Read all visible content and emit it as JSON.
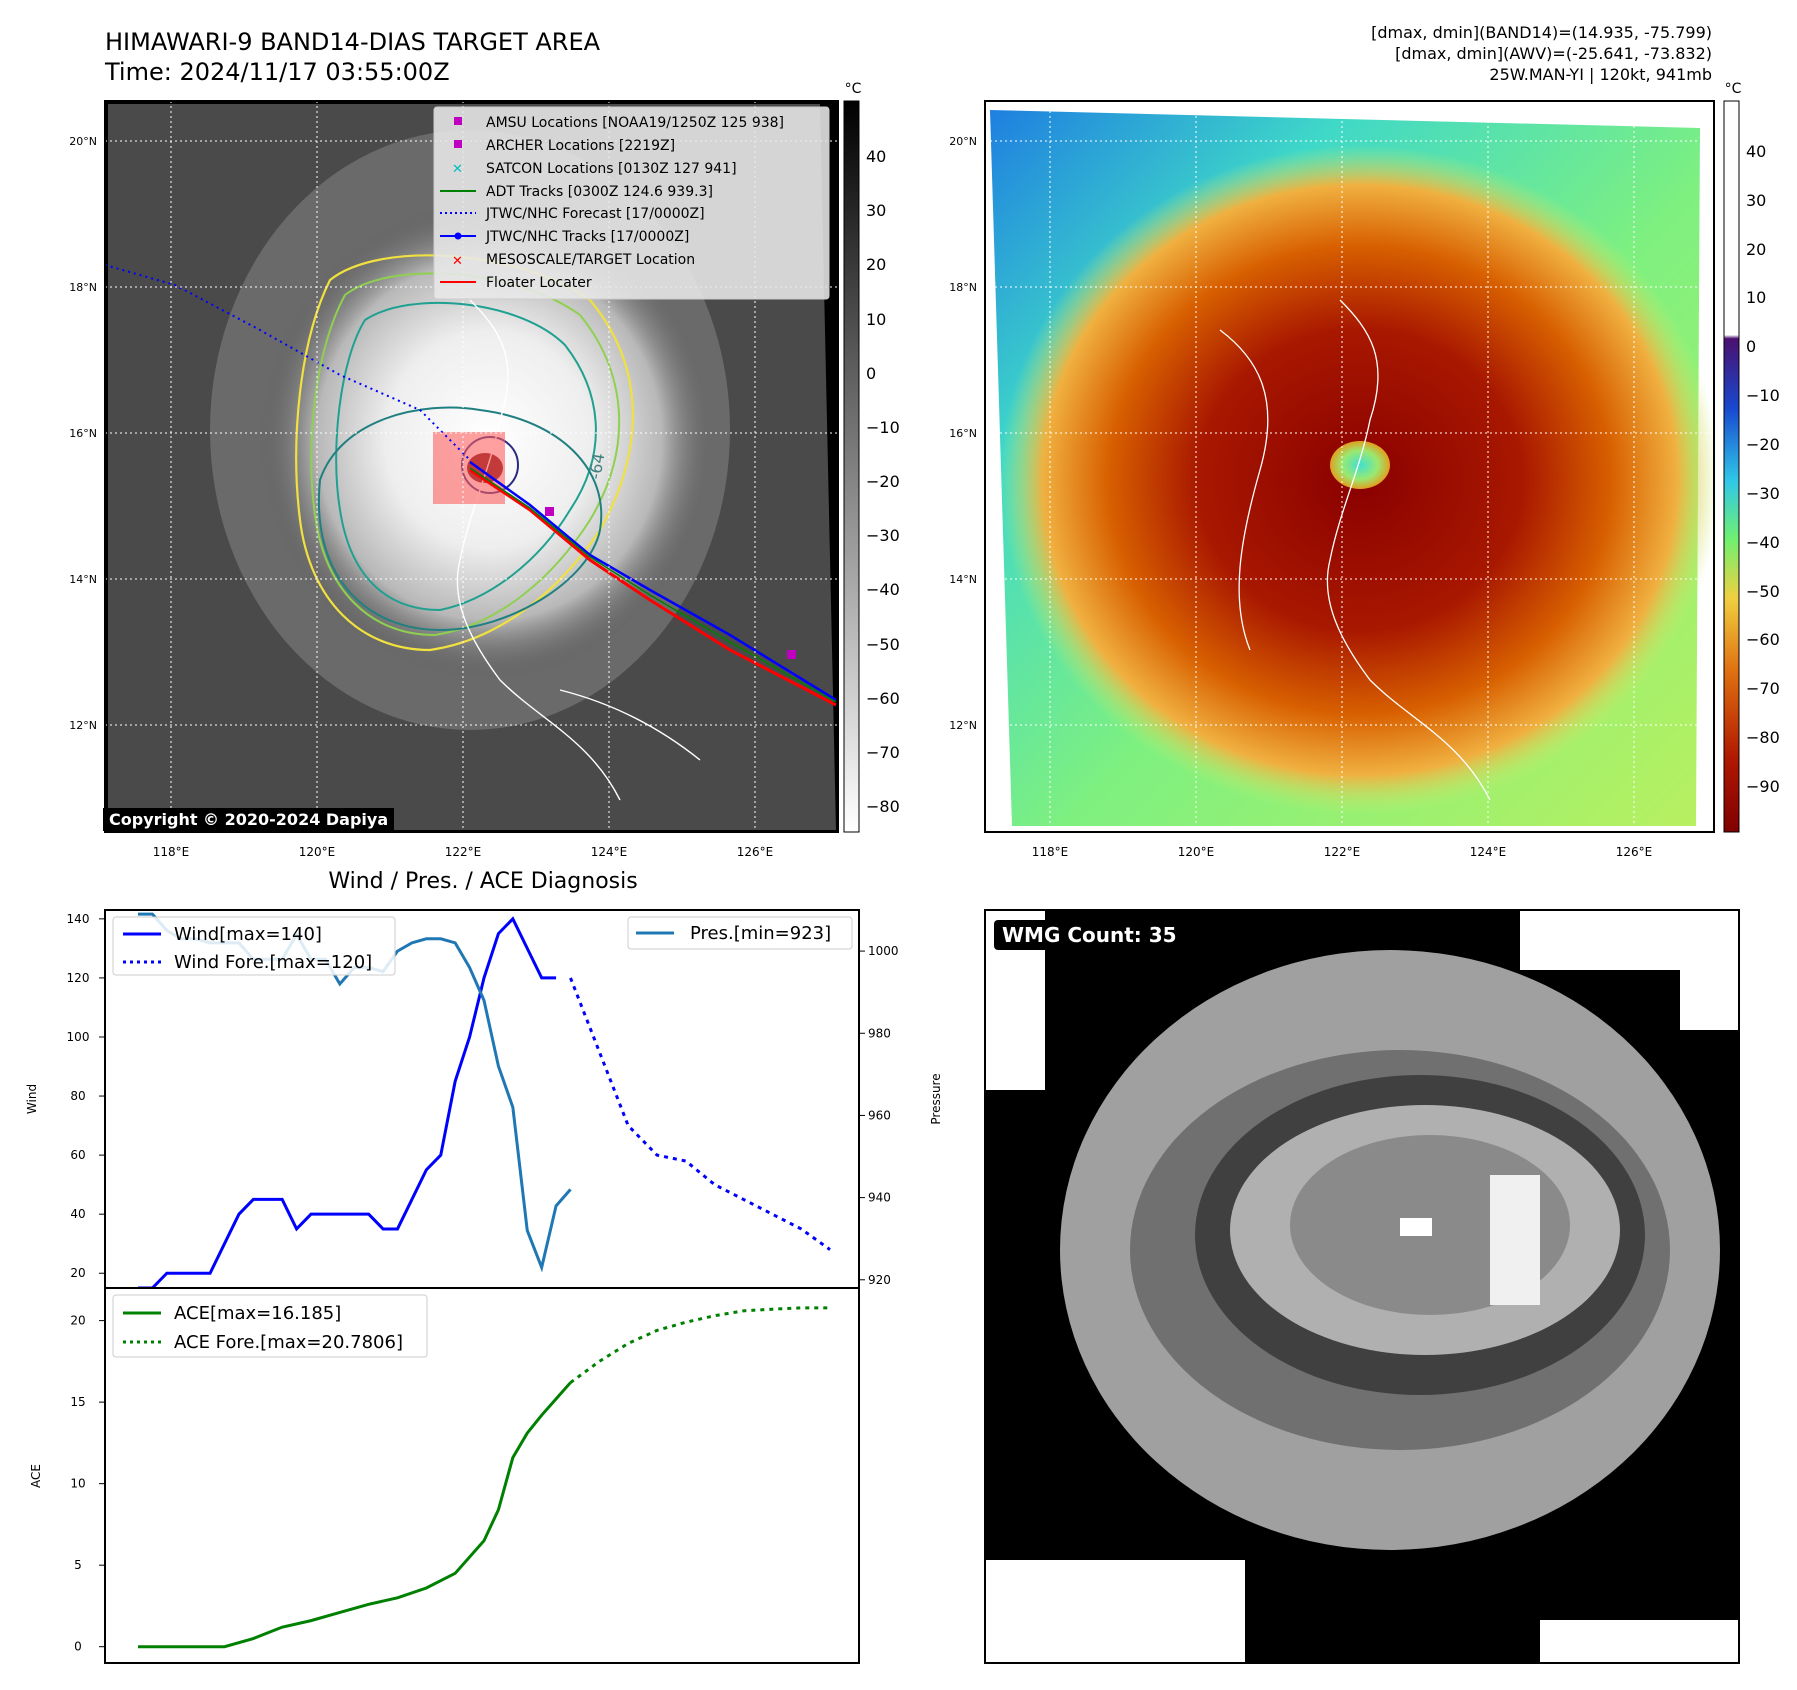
{
  "header": {
    "title_line1": "HIMAWARI-9 BAND14-DIAS TARGET AREA",
    "title_line2": "Time: 2024/11/17 03:55:00Z",
    "info_line1": "[dmax, dmin](BAND14)=(14.935, -75.799)",
    "info_line2": "[dmax, dmin](AWV)=(-25.641, -73.832)",
    "info_line3": "25W.MAN-YI | 120kt, 941mb"
  },
  "ir_panel": {
    "copyright": "Copyright © 2020-2024 Dapiya",
    "lat_labels": [
      "20°N",
      "18°N",
      "16°N",
      "14°N",
      "12°N"
    ],
    "lon_labels": [
      "118°E",
      "120°E",
      "122°E",
      "124°E",
      "126°E"
    ],
    "colorbar_unit": "°C",
    "colorbar_ticks": [
      "40",
      "30",
      "20",
      "10",
      "0",
      "−10",
      "−20",
      "−30",
      "−40",
      "−50",
      "−60",
      "−70",
      "−80"
    ],
    "contour_label": "-64",
    "legend": [
      {
        "label": "AMSU Locations [NOAA19/1250Z 125 938]",
        "color": "#c000c0",
        "marker": "square"
      },
      {
        "label": "ARCHER Locations [2219Z]",
        "color": "#c000c0",
        "marker": "square"
      },
      {
        "label": "SATCON Locations [0130Z 127 941]",
        "color": "#00c0c0",
        "marker": "x"
      },
      {
        "label": "ADT Tracks [0300Z 124.6 939.3]",
        "color": "#008000",
        "marker": "line"
      },
      {
        "label": "JTWC/NHC Forecast [17/0000Z]",
        "color": "#0000ff",
        "marker": "dotted"
      },
      {
        "label": "JTWC/NHC Tracks [17/0000Z]",
        "color": "#0000ff",
        "marker": "line-dot"
      },
      {
        "label": "MESOSCALE/TARGET Location",
        "color": "#ff0000",
        "marker": "x"
      },
      {
        "label": "Floater Locater",
        "color": "#ff0000",
        "marker": "line"
      }
    ]
  },
  "awv_panel": {
    "lat_labels": [
      "20°N",
      "18°N",
      "16°N",
      "14°N",
      "12°N"
    ],
    "lon_labels": [
      "118°E",
      "120°E",
      "122°E",
      "124°E",
      "126°E"
    ],
    "colorbar_unit": "°C",
    "colorbar_ticks": [
      "40",
      "30",
      "20",
      "10",
      "0",
      "−10",
      "−20",
      "−30",
      "−40",
      "−50",
      "−60",
      "−70",
      "−80",
      "−90"
    ]
  },
  "wmg_panel": {
    "count_label": "WMG Count: 35"
  },
  "colors": {
    "wind": "#0000ff",
    "pressure": "#1f77b4",
    "ace": "#008000"
  },
  "chart_data": [
    {
      "type": "line",
      "title": "Wind / Pres. / ACE Diagnosis",
      "ylabel": "Wind",
      "y2label": "Pressure",
      "ylim": [
        15,
        143
      ],
      "y2lim": [
        918,
        1010
      ],
      "yticks": [
        "20",
        "40",
        "60",
        "80",
        "100",
        "120",
        "140"
      ],
      "y2ticks": [
        "920",
        "940",
        "960",
        "980",
        "1000"
      ],
      "legend_left": [
        "Wind[max=140]",
        "Wind Fore.[max=120]"
      ],
      "legend_right": [
        "Pres.[min=923]"
      ],
      "series": [
        {
          "name": "Wind[max=140]",
          "axis": "left",
          "style": "solid",
          "x": [
            0,
            1,
            2,
            3,
            4,
            5,
            6,
            7,
            8,
            9,
            10,
            11,
            12,
            13,
            14,
            15,
            16,
            17,
            18,
            19,
            20,
            21,
            22,
            23,
            24,
            25,
            26,
            27,
            28,
            29,
            30,
            31
          ],
          "values": [
            15,
            15,
            20,
            20,
            20,
            20,
            30,
            40,
            45,
            45,
            45,
            35,
            40,
            40,
            40,
            40,
            40,
            35,
            35,
            45,
            55,
            60,
            85,
            100,
            120,
            135,
            140,
            130,
            120,
            120,
            null,
            null
          ]
        },
        {
          "name": "Wind Fore.[max=120]",
          "axis": "left",
          "style": "dotted",
          "x": [
            30,
            32,
            34,
            36,
            38,
            40,
            42,
            44,
            46,
            48
          ],
          "values": [
            120,
            95,
            70,
            60,
            58,
            50,
            45,
            40,
            35,
            28
          ]
        },
        {
          "name": "Pres.[min=923]",
          "axis": "right",
          "style": "solid",
          "x": [
            0,
            1,
            2,
            3,
            4,
            5,
            6,
            7,
            8,
            9,
            10,
            11,
            12,
            13,
            14,
            15,
            16,
            17,
            18,
            19,
            20,
            21,
            22,
            23,
            24,
            25,
            26,
            27,
            28,
            29,
            30
          ],
          "values": [
            1009,
            1009,
            1005,
            1003,
            1003,
            1002,
            1002,
            1002,
            998,
            998,
            998,
            1004,
            998,
            998,
            992,
            996,
            996,
            995,
            1000,
            1002,
            1003,
            1003,
            1002,
            996,
            988,
            972,
            962,
            932,
            923,
            938,
            942
          ]
        }
      ]
    },
    {
      "type": "line",
      "ylabel": "ACE",
      "ylim": [
        -1,
        22
      ],
      "yticks": [
        "0",
        "5",
        "10",
        "15",
        "20"
      ],
      "legend": [
        "ACE[max=16.185]",
        "ACE Fore.[max=20.7806]"
      ],
      "series": [
        {
          "name": "ACE[max=16.185]",
          "style": "solid",
          "x": [
            0,
            2,
            4,
            6,
            8,
            10,
            12,
            14,
            16,
            18,
            20,
            22,
            24,
            25,
            26,
            27,
            28,
            29,
            30
          ],
          "values": [
            0,
            0,
            0,
            0,
            0.5,
            1.2,
            1.6,
            2.1,
            2.6,
            3.0,
            3.6,
            4.5,
            6.5,
            8.4,
            11.6,
            13.1,
            14.2,
            15.2,
            16.2
          ]
        },
        {
          "name": "ACE Fore.[max=20.7806]",
          "style": "dotted",
          "x": [
            30,
            32,
            34,
            36,
            38,
            40,
            42,
            44,
            46,
            48
          ],
          "values": [
            16.2,
            17.5,
            18.6,
            19.4,
            19.9,
            20.3,
            20.6,
            20.7,
            20.78,
            20.78
          ]
        }
      ]
    }
  ]
}
